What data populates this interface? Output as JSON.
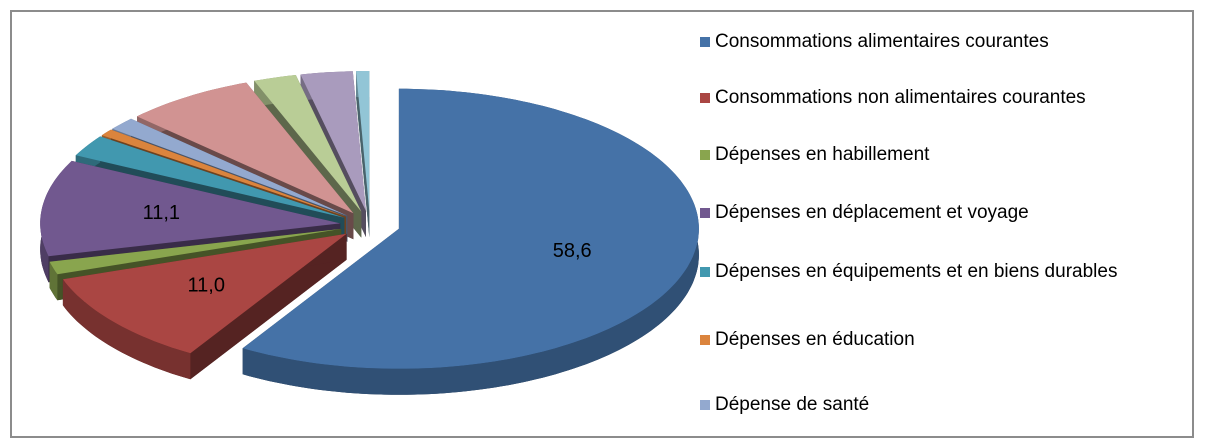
{
  "chart_data": {
    "type": "pie",
    "categories": [
      "Consommations alimentaires courantes",
      "Consommations non alimentaires courantes",
      "Dépenses en habillement",
      "Dépenses en déplacement et voyage",
      "Dépenses en équipements et en biens durables",
      "Dépenses en éducation",
      "Dépense de santé",
      null,
      null,
      null,
      null
    ],
    "values": [
      58.6,
      11.0,
      1.5,
      11.1,
      2.5,
      0.8,
      1.5,
      7.0,
      2.3,
      2.8,
      0.7
    ],
    "value_labels": [
      "58,6",
      "11,0",
      null,
      "11,1",
      null,
      null,
      null,
      null,
      null,
      null,
      null
    ],
    "colors": [
      "#4572a7",
      "#aa4643",
      "#89a54e",
      "#71588f",
      "#4198af",
      "#db843d",
      "#93a9cf",
      "#d19392",
      "#b9cd96",
      "#a99bbd",
      "#92c5d6"
    ],
    "legend": "right"
  }
}
